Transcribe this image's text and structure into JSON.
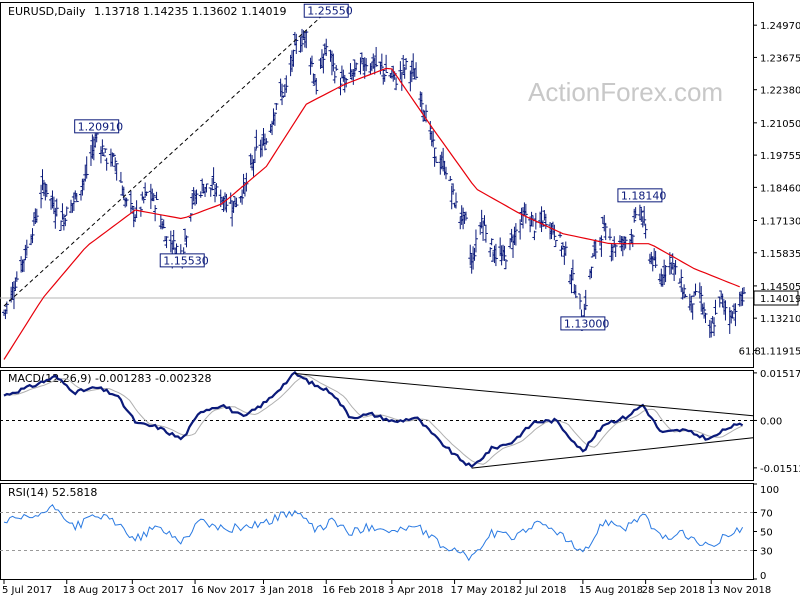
{
  "header": {
    "symbol": "EURUSD,Daily",
    "ohlc": "1.13718 1.14235 1.13602 1.14019"
  },
  "watermark": "ActionForex.com",
  "colors": {
    "price_bars": "#0b1a7a",
    "ma_line": "#e8000b",
    "macd_line": "#0b1a7a",
    "signal_line": "#b0b0b0",
    "rsi_line": "#2a7ae2",
    "trendline": "#000000",
    "label_border": "#0b1a7a"
  },
  "chart_data": [
    {
      "type": "candlestick",
      "panel": "price",
      "title": "EURUSD,Daily",
      "ylim": [
        1.1125,
        1.259
      ],
      "y_ticks": [
        "1.24970",
        "1.23675",
        "1.22380",
        "1.21050",
        "1.19755",
        "1.18460",
        "1.17130",
        "1.15835",
        "1.14505",
        "1.13210",
        "1.11915"
      ],
      "current_price": "1.14019",
      "x_ticks": [
        "5 Jul 2017",
        "18 Aug 2017",
        "3 Oct 2017",
        "16 Nov 2017",
        "3 Jan 2018",
        "16 Feb 2018",
        "3 Apr 2018",
        "17 May 2018",
        "2 Jul 2018",
        "15 Aug 2018",
        "28 Sep 2018",
        "13 Nov 2018"
      ],
      "annotations": [
        {
          "text": "1.20910",
          "value": 1.2091,
          "date": "2017-09-08"
        },
        {
          "text": "1.15530",
          "value": 1.1553,
          "date": "2017-11-07"
        },
        {
          "text": "1.25550",
          "value": 1.2555,
          "date": "2018-02-16"
        },
        {
          "text": "1.13000",
          "value": 1.13,
          "date": "2018-08-15"
        },
        {
          "text": "1.18140",
          "value": 1.1814,
          "date": "2018-09-24"
        },
        {
          "text": "61.8",
          "date": "2018-11-21"
        }
      ],
      "close_path": [
        {
          "date": "2017-07-05",
          "value": 1.134
        },
        {
          "date": "2017-07-12",
          "value": 1.145
        },
        {
          "date": "2017-07-20",
          "value": 1.158
        },
        {
          "date": "2017-07-27",
          "value": 1.172
        },
        {
          "date": "2017-08-02",
          "value": 1.186
        },
        {
          "date": "2017-08-09",
          "value": 1.177
        },
        {
          "date": "2017-08-15",
          "value": 1.172
        },
        {
          "date": "2017-08-24",
          "value": 1.18
        },
        {
          "date": "2017-09-01",
          "value": 1.19
        },
        {
          "date": "2017-09-08",
          "value": 1.206
        },
        {
          "date": "2017-09-15",
          "value": 1.196
        },
        {
          "date": "2017-09-22",
          "value": 1.195
        },
        {
          "date": "2017-09-28",
          "value": 1.179
        },
        {
          "date": "2017-10-06",
          "value": 1.173
        },
        {
          "date": "2017-10-13",
          "value": 1.182
        },
        {
          "date": "2017-10-20",
          "value": 1.178
        },
        {
          "date": "2017-10-27",
          "value": 1.164
        },
        {
          "date": "2017-11-07",
          "value": 1.158
        },
        {
          "date": "2017-11-14",
          "value": 1.179
        },
        {
          "date": "2017-11-22",
          "value": 1.185
        },
        {
          "date": "2017-11-29",
          "value": 1.184
        },
        {
          "date": "2017-12-07",
          "value": 1.179
        },
        {
          "date": "2017-12-14",
          "value": 1.178
        },
        {
          "date": "2017-12-22",
          "value": 1.186
        },
        {
          "date": "2017-12-29",
          "value": 1.199
        },
        {
          "date": "2018-01-05",
          "value": 1.203
        },
        {
          "date": "2018-01-12",
          "value": 1.219
        },
        {
          "date": "2018-01-19",
          "value": 1.224
        },
        {
          "date": "2018-01-26",
          "value": 1.242
        },
        {
          "date": "2018-02-02",
          "value": 1.246
        },
        {
          "date": "2018-02-09",
          "value": 1.225
        },
        {
          "date": "2018-02-16",
          "value": 1.241
        },
        {
          "date": "2018-02-23",
          "value": 1.23
        },
        {
          "date": "2018-03-01",
          "value": 1.226
        },
        {
          "date": "2018-03-08",
          "value": 1.231
        },
        {
          "date": "2018-03-15",
          "value": 1.235
        },
        {
          "date": "2018-03-22",
          "value": 1.234
        },
        {
          "date": "2018-03-29",
          "value": 1.231
        },
        {
          "date": "2018-04-06",
          "value": 1.228
        },
        {
          "date": "2018-04-13",
          "value": 1.233
        },
        {
          "date": "2018-04-20",
          "value": 1.229
        },
        {
          "date": "2018-04-27",
          "value": 1.213
        },
        {
          "date": "2018-05-04",
          "value": 1.196
        },
        {
          "date": "2018-05-11",
          "value": 1.192
        },
        {
          "date": "2018-05-18",
          "value": 1.177
        },
        {
          "date": "2018-05-25",
          "value": 1.17
        },
        {
          "date": "2018-05-29",
          "value": 1.154
        },
        {
          "date": "2018-06-05",
          "value": 1.172
        },
        {
          "date": "2018-06-14",
          "value": 1.158
        },
        {
          "date": "2018-06-21",
          "value": 1.156
        },
        {
          "date": "2018-06-28",
          "value": 1.166
        },
        {
          "date": "2018-07-06",
          "value": 1.174
        },
        {
          "date": "2018-07-13",
          "value": 1.168
        },
        {
          "date": "2018-07-20",
          "value": 1.172
        },
        {
          "date": "2018-07-27",
          "value": 1.166
        },
        {
          "date": "2018-08-03",
          "value": 1.158
        },
        {
          "date": "2018-08-10",
          "value": 1.143
        },
        {
          "date": "2018-08-15",
          "value": 1.132
        },
        {
          "date": "2018-08-22",
          "value": 1.156
        },
        {
          "date": "2018-08-29",
          "value": 1.168
        },
        {
          "date": "2018-09-05",
          "value": 1.162
        },
        {
          "date": "2018-09-12",
          "value": 1.162
        },
        {
          "date": "2018-09-19",
          "value": 1.167
        },
        {
          "date": "2018-09-24",
          "value": 1.177
        },
        {
          "date": "2018-10-01",
          "value": 1.158
        },
        {
          "date": "2018-10-08",
          "value": 1.148
        },
        {
          "date": "2018-10-15",
          "value": 1.156
        },
        {
          "date": "2018-10-22",
          "value": 1.147
        },
        {
          "date": "2018-10-29",
          "value": 1.138
        },
        {
          "date": "2018-11-05",
          "value": 1.142
        },
        {
          "date": "2018-11-12",
          "value": 1.124
        },
        {
          "date": "2018-11-19",
          "value": 1.14
        },
        {
          "date": "2018-11-26",
          "value": 1.133
        },
        {
          "date": "2018-12-03",
          "value": 1.139
        },
        {
          "date": "2018-12-06",
          "value": 1.1402
        }
      ],
      "ma_path": [
        {
          "date": "2017-07-05",
          "value": 1.1155
        },
        {
          "date": "2017-08-01",
          "value": 1.14
        },
        {
          "date": "2017-09-01",
          "value": 1.161
        },
        {
          "date": "2017-10-05",
          "value": 1.1755
        },
        {
          "date": "2017-11-07",
          "value": 1.172
        },
        {
          "date": "2017-12-05",
          "value": 1.178
        },
        {
          "date": "2018-01-05",
          "value": 1.193
        },
        {
          "date": "2018-02-02",
          "value": 1.218
        },
        {
          "date": "2018-03-01",
          "value": 1.226
        },
        {
          "date": "2018-04-02",
          "value": 1.233
        },
        {
          "date": "2018-05-02",
          "value": 1.208
        },
        {
          "date": "2018-06-01",
          "value": 1.184
        },
        {
          "date": "2018-07-02",
          "value": 1.174
        },
        {
          "date": "2018-08-01",
          "value": 1.166
        },
        {
          "date": "2018-09-03",
          "value": 1.162
        },
        {
          "date": "2018-10-01",
          "value": 1.162
        },
        {
          "date": "2018-11-01",
          "value": 1.152
        },
        {
          "date": "2018-12-06",
          "value": 1.144
        }
      ],
      "trendline": [
        {
          "date": "2017-07-05",
          "value": 1.137
        },
        {
          "date": "2018-02-16",
          "value": 1.255
        }
      ],
      "series": [
        {
          "name": "",
          "role": "daily OHLC bars"
        },
        {
          "name": "",
          "role": "moving average"
        }
      ]
    },
    {
      "type": "line",
      "panel": "macd",
      "title": "MACD(12,26,9) -0.001283 -0.002328",
      "ylim": [
        -0.019,
        0.01578
      ],
      "y_ticks": [
        "0.015178",
        "0.00",
        "-0.015126"
      ],
      "zero_line": 0.0,
      "series": [
        {
          "name": "",
          "role": "macd",
          "points": [
            {
              "date": "2017-07-05",
              "value": 0.008
            },
            {
              "date": "2017-07-25",
              "value": 0.011
            },
            {
              "date": "2017-08-10",
              "value": 0.014
            },
            {
              "date": "2017-08-24",
              "value": 0.009
            },
            {
              "date": "2017-09-08",
              "value": 0.0105
            },
            {
              "date": "2017-09-22",
              "value": 0.008
            },
            {
              "date": "2017-10-06",
              "value": -0.001
            },
            {
              "date": "2017-10-20",
              "value": -0.002
            },
            {
              "date": "2017-11-07",
              "value": -0.006
            },
            {
              "date": "2017-11-20",
              "value": 0.003
            },
            {
              "date": "2017-12-05",
              "value": 0.005
            },
            {
              "date": "2017-12-20",
              "value": 0.001
            },
            {
              "date": "2018-01-05",
              "value": 0.006
            },
            {
              "date": "2018-01-25",
              "value": 0.015
            },
            {
              "date": "2018-02-09",
              "value": 0.011
            },
            {
              "date": "2018-02-20",
              "value": 0.009
            },
            {
              "date": "2018-03-05",
              "value": 0.001
            },
            {
              "date": "2018-03-20",
              "value": 0.002
            },
            {
              "date": "2018-04-05",
              "value": -0.0005
            },
            {
              "date": "2018-04-20",
              "value": 0.001
            },
            {
              "date": "2018-05-05",
              "value": -0.006
            },
            {
              "date": "2018-05-17",
              "value": -0.011
            },
            {
              "date": "2018-05-29",
              "value": -0.015
            },
            {
              "date": "2018-06-12",
              "value": -0.009
            },
            {
              "date": "2018-06-26",
              "value": -0.007
            },
            {
              "date": "2018-07-12",
              "value": -0.0005
            },
            {
              "date": "2018-07-27",
              "value": 0.0
            },
            {
              "date": "2018-08-15",
              "value": -0.01
            },
            {
              "date": "2018-08-30",
              "value": -0.001
            },
            {
              "date": "2018-09-14",
              "value": 0.001
            },
            {
              "date": "2018-09-26",
              "value": 0.005
            },
            {
              "date": "2018-10-09",
              "value": -0.004
            },
            {
              "date": "2018-10-24",
              "value": -0.003
            },
            {
              "date": "2018-11-12",
              "value": -0.006
            },
            {
              "date": "2018-11-26",
              "value": -0.002
            },
            {
              "date": "2018-12-06",
              "value": -0.0013
            }
          ]
        },
        {
          "name": "",
          "role": "signal"
        }
      ],
      "trendlines": [
        [
          {
            "date": "2018-01-25",
            "value": 0.015
          },
          {
            "date": "2018-12-06",
            "value": 0.0015
          }
        ],
        [
          {
            "date": "2018-05-29",
            "value": -0.0152
          },
          {
            "date": "2018-12-06",
            "value": -0.0055
          }
        ]
      ]
    },
    {
      "type": "line",
      "panel": "rsi",
      "title": "RSI(14) 52.5818",
      "ylim": [
        0,
        100
      ],
      "y_ticks": [
        "100",
        "70",
        "50",
        "30",
        "0"
      ],
      "series": [
        {
          "name": "",
          "role": "rsi",
          "points": [
            {
              "date": "2017-07-05",
              "value": 60
            },
            {
              "date": "2017-07-25",
              "value": 65
            },
            {
              "date": "2017-08-10",
              "value": 75
            },
            {
              "date": "2017-08-24",
              "value": 55
            },
            {
              "date": "2017-09-08",
              "value": 68
            },
            {
              "date": "2017-09-22",
              "value": 58
            },
            {
              "date": "2017-10-06",
              "value": 42
            },
            {
              "date": "2017-10-20",
              "value": 55
            },
            {
              "date": "2017-11-07",
              "value": 40
            },
            {
              "date": "2017-11-20",
              "value": 62
            },
            {
              "date": "2017-12-05",
              "value": 52
            },
            {
              "date": "2017-12-20",
              "value": 55
            },
            {
              "date": "2018-01-05",
              "value": 60
            },
            {
              "date": "2018-01-25",
              "value": 72
            },
            {
              "date": "2018-02-09",
              "value": 50
            },
            {
              "date": "2018-02-20",
              "value": 62
            },
            {
              "date": "2018-03-05",
              "value": 48
            },
            {
              "date": "2018-03-20",
              "value": 56
            },
            {
              "date": "2018-04-05",
              "value": 50
            },
            {
              "date": "2018-04-20",
              "value": 56
            },
            {
              "date": "2018-05-05",
              "value": 38
            },
            {
              "date": "2018-05-17",
              "value": 30
            },
            {
              "date": "2018-05-29",
              "value": 22
            },
            {
              "date": "2018-06-12",
              "value": 48
            },
            {
              "date": "2018-06-26",
              "value": 44
            },
            {
              "date": "2018-07-12",
              "value": 58
            },
            {
              "date": "2018-07-27",
              "value": 52
            },
            {
              "date": "2018-08-15",
              "value": 25
            },
            {
              "date": "2018-08-30",
              "value": 62
            },
            {
              "date": "2018-09-14",
              "value": 55
            },
            {
              "date": "2018-09-26",
              "value": 68
            },
            {
              "date": "2018-10-09",
              "value": 42
            },
            {
              "date": "2018-10-24",
              "value": 48
            },
            {
              "date": "2018-11-12",
              "value": 32
            },
            {
              "date": "2018-11-26",
              "value": 50
            },
            {
              "date": "2018-12-06",
              "value": 52.58
            }
          ]
        }
      ],
      "reference_lines": [
        70,
        30
      ]
    }
  ]
}
